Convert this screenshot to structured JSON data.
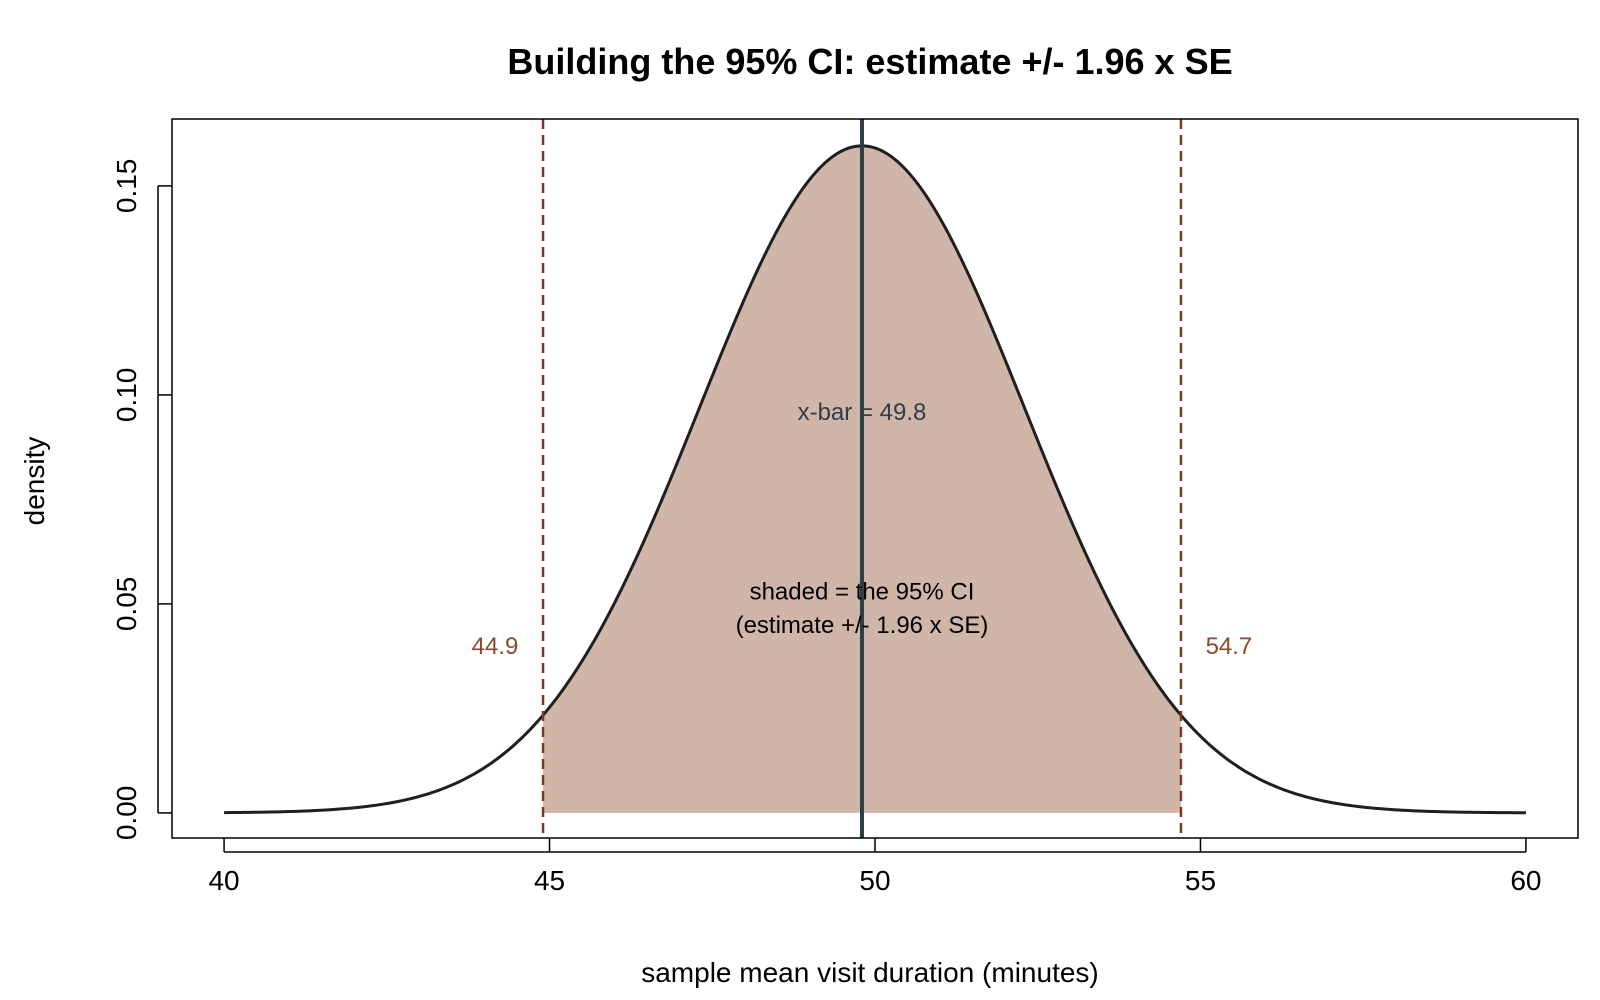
{
  "chart_data": {
    "type": "area",
    "title": "Building the 95% CI: estimate +/- 1.96 x SE",
    "xlabel": "sample mean visit duration (minutes)",
    "ylabel": "density",
    "xlim": [
      39.2,
      60.8
    ],
    "ylim": [
      -0.006,
      0.166
    ],
    "x_ticks": [
      40,
      45,
      50,
      55,
      60
    ],
    "x_tick_labels": [
      "40",
      "45",
      "50",
      "55",
      "60"
    ],
    "y_ticks": [
      0.0,
      0.05,
      0.1,
      0.15
    ],
    "y_tick_labels": [
      "0.00",
      "0.05",
      "0.10",
      "0.15"
    ],
    "grid": false,
    "curve": {
      "distribution": "normal",
      "mean": 49.8,
      "sd": 2.5,
      "x_range": [
        40,
        60
      ]
    },
    "estimate": {
      "x": 49.8,
      "label": "x-bar = 49.8",
      "label_y": 0.094
    },
    "ci": {
      "lower": 44.9,
      "upper": 54.7,
      "lower_label": "44.9",
      "upper_label": "54.7",
      "label_y": 0.038
    },
    "shade_note": {
      "lines": [
        "shaded = the 95% CI",
        "(estimate +/- 1.96 x SE)"
      ],
      "y": [
        0.051,
        0.043
      ]
    },
    "colors": {
      "fill": "#d0b6a9",
      "curve": "#1f1f1f",
      "estimate": "#2f3e46",
      "ci": "#7a3b1d",
      "ci_label": "#8b4a2b",
      "axis": "#000000",
      "text": "#000000"
    }
  }
}
